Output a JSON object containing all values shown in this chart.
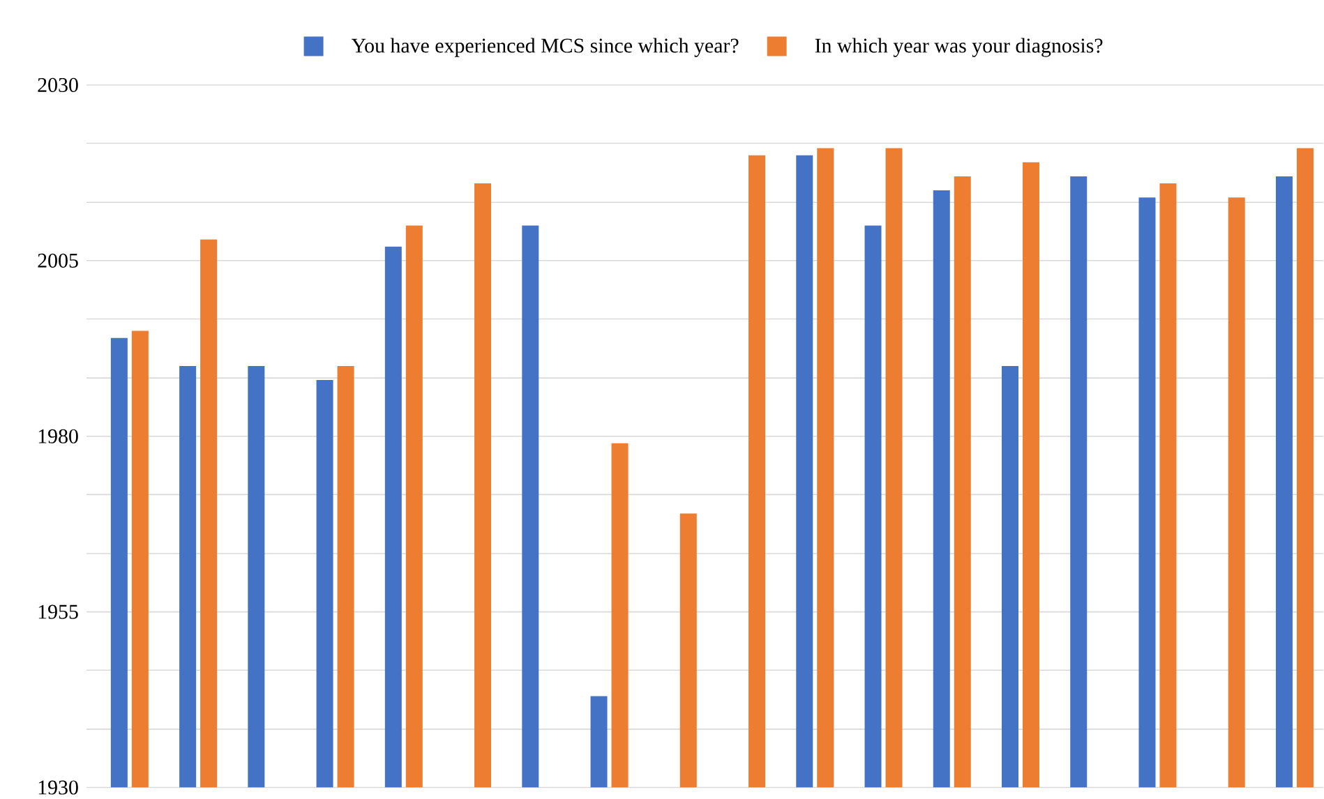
{
  "chart_data": {
    "type": "bar",
    "categories": [
      null,
      null,
      null,
      null,
      null,
      null,
      null,
      null,
      null,
      null,
      null,
      null,
      null,
      null,
      null,
      null,
      null,
      null
    ],
    "series": [
      {
        "name": "You have experienced MCS since which year?",
        "color": "#4472c4",
        "values": [
          1994,
          1990,
          1990,
          1988,
          2007,
          null,
          2010,
          1943,
          null,
          null,
          2020,
          2010,
          2015,
          1990,
          2017,
          2014,
          null,
          2017
        ]
      },
      {
        "name": "In which year was your diagnosis?",
        "color": "#ed7d31",
        "values": [
          1995,
          2008,
          null,
          1990,
          2010,
          2016,
          null,
          1979,
          1969,
          2020,
          2021,
          2021,
          2017,
          2019,
          null,
          2016,
          2014,
          2021
        ]
      }
    ],
    "ylim": [
      1930,
      2030
    ],
    "yticks": [
      1930,
      {
        "value": 1938.3,
        "label": null
      },
      {
        "value": 1946.7,
        "label": null
      },
      1955,
      {
        "value": 1963.3,
        "label": null
      },
      {
        "value": 1971.7,
        "label": null
      },
      1980,
      {
        "value": 1988.3,
        "label": null
      },
      {
        "value": 1996.7,
        "label": null
      },
      2005,
      {
        "value": 2013.3,
        "label": null
      },
      {
        "value": 2021.7,
        "label": null
      },
      2030
    ],
    "grid": "y",
    "legend": "top"
  }
}
